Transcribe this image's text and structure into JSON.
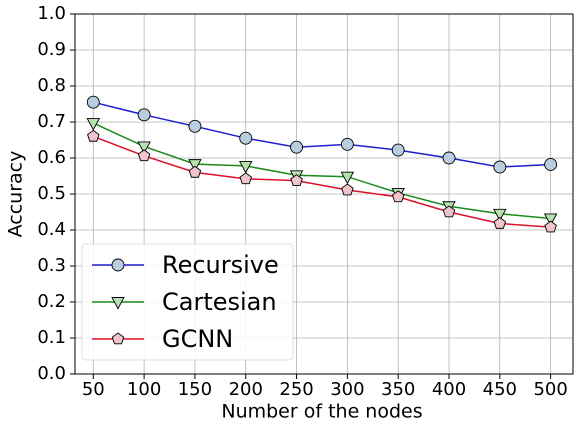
{
  "chart_data": {
    "type": "line",
    "xlabel": "Number of the nodes",
    "ylabel": "Accuracy",
    "x": [
      50,
      100,
      150,
      200,
      250,
      300,
      350,
      400,
      450,
      500
    ],
    "series": [
      {
        "name": "Recursive",
        "color": "#1f1fd0",
        "marker": "circle",
        "marker_fill": "#b8cde0",
        "values": [
          0.755,
          0.72,
          0.688,
          0.655,
          0.63,
          0.638,
          0.622,
          0.6,
          0.575,
          0.582
        ]
      },
      {
        "name": "Cartesian",
        "color": "#1a8a1a",
        "marker": "triangle-down",
        "marker_fill": "#b8e0b0",
        "values": [
          0.697,
          0.632,
          0.583,
          0.578,
          0.552,
          0.548,
          0.503,
          0.466,
          0.445,
          0.432
        ]
      },
      {
        "name": "GCNN",
        "color": "#e0102a",
        "marker": "pentagon",
        "marker_fill": "#f0c4cc",
        "values": [
          0.66,
          0.606,
          0.56,
          0.542,
          0.537,
          0.511,
          0.492,
          0.45,
          0.418,
          0.408
        ]
      }
    ],
    "xlim": [
      32,
      522
    ],
    "xticks": [
      50,
      100,
      150,
      200,
      250,
      300,
      350,
      400,
      450,
      500
    ],
    "ylim": [
      0,
      1
    ],
    "yticks": [
      {
        "value": 0,
        "label": "0.0"
      },
      0.1,
      0.2,
      0.3,
      0.4,
      0.5,
      0.6,
      0.7,
      0.8,
      0.9,
      {
        "value": 1,
        "label": "1.0"
      }
    ],
    "grid": true,
    "legend": "lower left"
  }
}
